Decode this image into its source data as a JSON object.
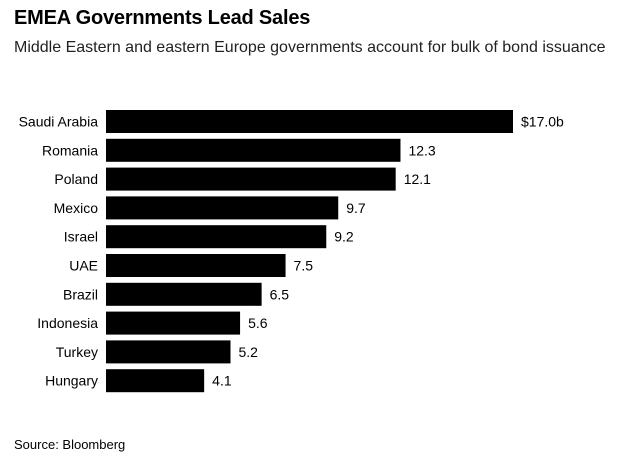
{
  "title": "EMEA Governments Lead Sales",
  "subtitle": "Middle Eastern and eastern Europe governments account for bulk of bond issuance",
  "source": "Source: Bloomberg",
  "colors": {
    "bar": "#000000",
    "background": "#ffffff"
  },
  "chart_data": {
    "type": "bar",
    "orientation": "horizontal",
    "categories": [
      "Saudi Arabia",
      "Romania",
      "Poland",
      "Mexico",
      "Israel",
      "UAE",
      "Brazil",
      "Indonesia",
      "Turkey",
      "Hungary"
    ],
    "values": [
      17.0,
      12.3,
      12.1,
      9.7,
      9.2,
      7.5,
      6.5,
      5.6,
      5.2,
      4.1
    ],
    "value_labels": [
      "$17.0b",
      "12.3",
      "12.1",
      "9.7",
      "9.2",
      "7.5",
      "6.5",
      "5.6",
      "5.2",
      "4.1"
    ],
    "title": "EMEA Governments Lead Sales",
    "xlim": [
      0,
      17.0
    ],
    "grid": false,
    "legend": "none"
  }
}
